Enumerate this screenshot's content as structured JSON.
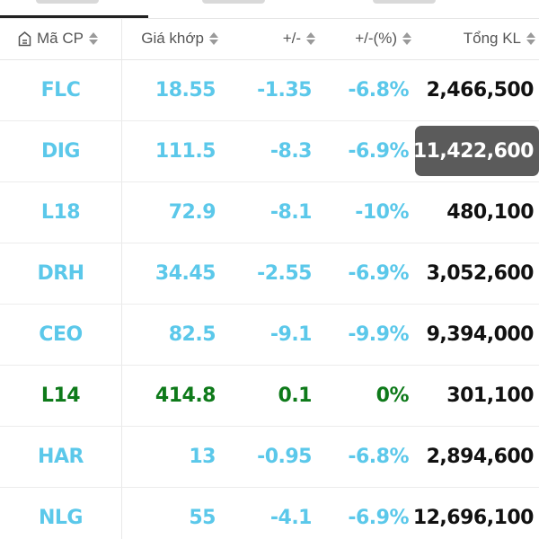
{
  "header": {
    "code_label": "Mã CP",
    "price_label": "Giá khớp",
    "change_label": "+/-",
    "pct_label": "+/-(%)",
    "volume_label": "Tổng KL"
  },
  "colors": {
    "down": "#5bc8ea",
    "up": "#0e7a1a",
    "highlight": "#5b5b5b"
  },
  "rows": [
    {
      "code": "FLC",
      "price": "18.55",
      "change": "-1.35",
      "pct": "-6.8%",
      "volume": "2,466,500",
      "trend": "down"
    },
    {
      "code": "DIG",
      "price": "111.5",
      "change": "-8.3",
      "pct": "-6.9%",
      "volume": "11,422,600",
      "trend": "down",
      "highlighted": true
    },
    {
      "code": "L18",
      "price": "72.9",
      "change": "-8.1",
      "pct": "-10%",
      "volume": "480,100",
      "trend": "down"
    },
    {
      "code": "DRH",
      "price": "34.45",
      "change": "-2.55",
      "pct": "-6.9%",
      "volume": "3,052,600",
      "trend": "down"
    },
    {
      "code": "CEO",
      "price": "82.5",
      "change": "-9.1",
      "pct": "-9.9%",
      "volume": "9,394,000",
      "trend": "down"
    },
    {
      "code": "L14",
      "price": "414.8",
      "change": "0.1",
      "pct": "0%",
      "volume": "301,100",
      "trend": "up"
    },
    {
      "code": "HAR",
      "price": "13",
      "change": "-0.95",
      "pct": "-6.8%",
      "volume": "2,894,600",
      "trend": "down"
    },
    {
      "code": "NLG",
      "price": "55",
      "change": "-4.1",
      "pct": "-6.9%",
      "volume": "12,696,100",
      "trend": "down"
    }
  ]
}
